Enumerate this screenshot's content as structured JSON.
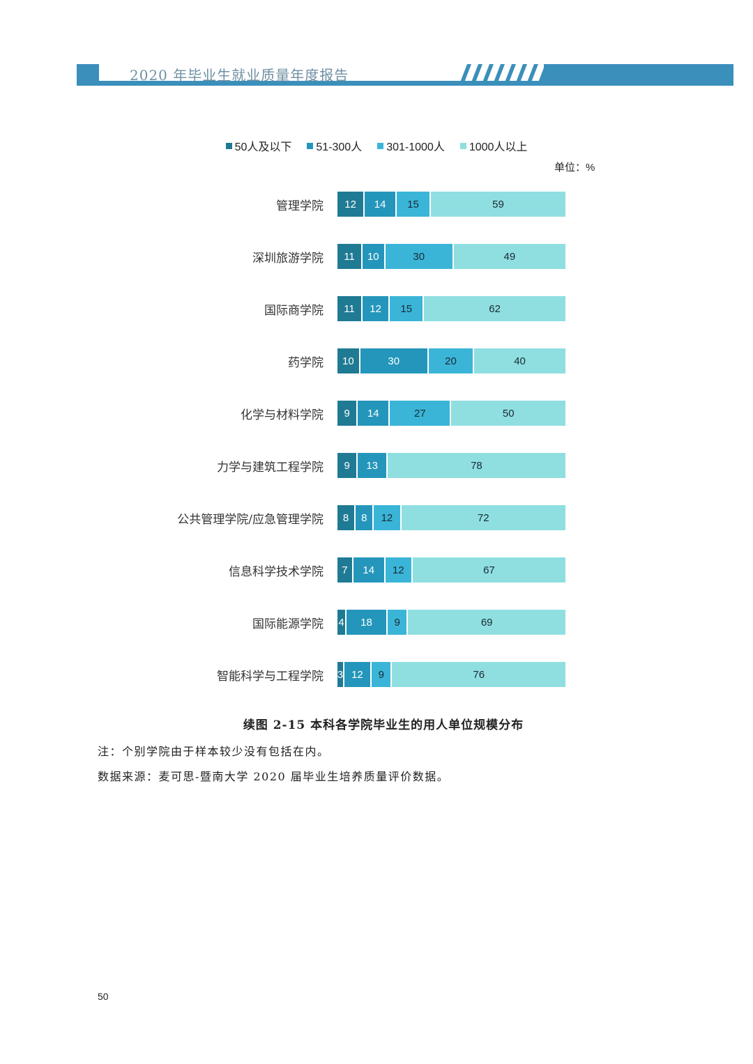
{
  "header": {
    "title": "2020 年毕业生就业质量年度报告"
  },
  "chart_data": {
    "type": "bar",
    "orientation": "horizontal-stacked-100",
    "title": "续图 2-15 本科各学院毕业生的用人单位规模分布",
    "unit": "单位：%",
    "legend_position": "top",
    "categories": [
      "管理学院",
      "深圳旅游学院",
      "国际商学院",
      "药学院",
      "化学与材料学院",
      "力学与建筑工程学院",
      "公共管理学院/应急管理学院",
      "信息科学技术学院",
      "国际能源学院",
      "智能科学与工程学院"
    ],
    "series": [
      {
        "name": "50人及以下",
        "color": "#1f7a93",
        "label_color": "#ffffff",
        "values": [
          12,
          11,
          11,
          10,
          9,
          9,
          8,
          7,
          4,
          3
        ]
      },
      {
        "name": "51-300人",
        "color": "#2596bb",
        "label_color": "#ffffff",
        "values": [
          14,
          10,
          12,
          30,
          14,
          13,
          8,
          14,
          18,
          12
        ]
      },
      {
        "name": "301-1000人",
        "color": "#3ab5d8",
        "label_color": "#1a2a33",
        "values": [
          15,
          30,
          15,
          20,
          27,
          0,
          12,
          12,
          9,
          9
        ]
      },
      {
        "name": "1000人以上",
        "color": "#8fdfe0",
        "label_color": "#1a2a33",
        "values": [
          59,
          49,
          62,
          40,
          50,
          78,
          72,
          67,
          69,
          76
        ]
      }
    ],
    "xlim": [
      0,
      100
    ]
  },
  "notes": {
    "note": "注：个别学院由于样本较少没有包括在内。",
    "source": "数据来源：麦可思-暨南大学 2020 届毕业生培养质量评价数据。"
  },
  "page_number": "50"
}
